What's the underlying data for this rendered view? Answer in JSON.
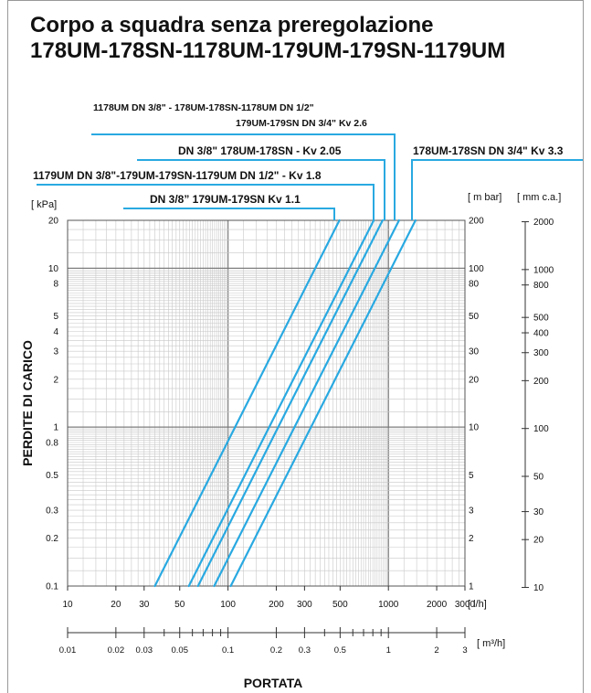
{
  "header": {
    "title_line1": "Corpo a squadra senza preregolazione",
    "title_line2": "178UM-178SN-1178UM-179UM-179SN-1179UM"
  },
  "chart_data": {
    "type": "line",
    "xlabel": "PORTATA",
    "ylabel": "PERDITE DI CARICO",
    "x_scale": "log",
    "y_scale": "log",
    "xlim": [
      10,
      3000
    ],
    "ylim": [
      0.1,
      20
    ],
    "grid": true,
    "line_color": "#29a9e1",
    "x_unit": "[ l/h]",
    "x2_unit": "[ m³/h]",
    "y_unit": "[ kPa]",
    "y2_unit": "[ m bar]",
    "y3_unit": "[ mm c.a.]",
    "x_ticks": [
      {
        "v": 10,
        "t": "10"
      },
      {
        "v": 20,
        "t": "20"
      },
      {
        "v": 30,
        "t": "30"
      },
      {
        "v": 50,
        "t": "50"
      },
      {
        "v": 100,
        "t": "100"
      },
      {
        "v": 200,
        "t": "200"
      },
      {
        "v": 300,
        "t": "300"
      },
      {
        "v": 500,
        "t": "500"
      },
      {
        "v": 1000,
        "t": "1000"
      },
      {
        "v": 2000,
        "t": "2000"
      },
      {
        "v": 3000,
        "t": "3000"
      }
    ],
    "x2_ticks": [
      {
        "v": 0.01,
        "t": "0.01"
      },
      {
        "v": 0.02,
        "t": "0.02"
      },
      {
        "v": 0.03,
        "t": "0.03"
      },
      {
        "v": 0.05,
        "t": "0.05"
      },
      {
        "v": 0.1,
        "t": "0.1"
      },
      {
        "v": 0.2,
        "t": "0.2"
      },
      {
        "v": 0.3,
        "t": "0.3"
      },
      {
        "v": 0.5,
        "t": "0.5"
      },
      {
        "v": 1,
        "t": "1"
      },
      {
        "v": 2,
        "t": "2"
      },
      {
        "v": 3,
        "t": "3"
      }
    ],
    "y_ticks": [
      {
        "v": 0.1,
        "t": "0.1"
      },
      {
        "v": 0.2,
        "t": "0.2"
      },
      {
        "v": 0.3,
        "t": "0.3"
      },
      {
        "v": 0.5,
        "t": "0.5"
      },
      {
        "v": 0.8,
        "t": "0.8"
      },
      {
        "v": 1,
        "t": "1"
      },
      {
        "v": 2,
        "t": "2"
      },
      {
        "v": 3,
        "t": "3"
      },
      {
        "v": 4,
        "t": "4"
      },
      {
        "v": 5,
        "t": "5"
      },
      {
        "v": 8,
        "t": "8"
      },
      {
        "v": 10,
        "t": "10"
      },
      {
        "v": 20,
        "t": "20"
      }
    ],
    "y2_ticks": [
      {
        "v": 0.1,
        "t": "1"
      },
      {
        "v": 0.2,
        "t": "2"
      },
      {
        "v": 0.3,
        "t": "3"
      },
      {
        "v": 0.5,
        "t": "5"
      },
      {
        "v": 1,
        "t": "10"
      },
      {
        "v": 2,
        "t": "20"
      },
      {
        "v": 3,
        "t": "30"
      },
      {
        "v": 5,
        "t": "50"
      },
      {
        "v": 8,
        "t": "80"
      },
      {
        "v": 10,
        "t": "100"
      },
      {
        "v": 20,
        "t": "200"
      }
    ],
    "y3_ticks": [
      {
        "v": 0.098,
        "t": "10"
      },
      {
        "v": 0.196,
        "t": "20"
      },
      {
        "v": 0.294,
        "t": "30"
      },
      {
        "v": 0.49,
        "t": "50"
      },
      {
        "v": 0.98,
        "t": "100"
      },
      {
        "v": 1.96,
        "t": "200"
      },
      {
        "v": 2.94,
        "t": "300"
      },
      {
        "v": 3.92,
        "t": "400"
      },
      {
        "v": 4.9,
        "t": "500"
      },
      {
        "v": 7.84,
        "t": "800"
      },
      {
        "v": 9.8,
        "t": "1000"
      },
      {
        "v": 19.6,
        "t": "2000"
      }
    ],
    "series": [
      {
        "label": "DN 3/8” 179UM-179SN  Kv 1.1",
        "kv": 1.1,
        "x": [
          35,
          495
        ],
        "y": [
          0.1,
          20
        ]
      },
      {
        "label": "1179UM DN 3/8\"-179UM-179SN-1179UM DN 1/2\" - Kv 1.8",
        "kv": 1.8,
        "x": [
          57,
          810
        ],
        "y": [
          0.1,
          20
        ]
      },
      {
        "label": "DN 3/8\" 178UM-178SN - Kv 2.05",
        "kv": 2.05,
        "x": [
          65,
          920
        ],
        "y": [
          0.1,
          20
        ]
      },
      {
        "label": "1178UM DN 3/8\" - 178UM-178SN-1178UM DN 1/2\" 179UM-179SN DN 3/4\"  Kv 2.6",
        "kv": 2.6,
        "x": [
          82,
          1165
        ],
        "y": [
          0.1,
          20
        ]
      },
      {
        "label": "178UM-178SN DN 3/4\" Kv 3.3",
        "kv": 3.3,
        "x": [
          104,
          1475
        ],
        "y": [
          0.1,
          20
        ]
      }
    ],
    "annotations": {
      "kv11": "DN 3/8” 179UM-179SN  Kv 1.1",
      "kv18": "1179UM DN 3/8\"-179UM-179SN-1179UM DN 1/2\" - Kv 1.8",
      "kv205": "DN 3/8\" 178UM-178SN - Kv 2.05",
      "kv26_line1": "1178UM DN 3/8\" - 178UM-178SN-1178UM DN 1/2\"",
      "kv26_line2": "179UM-179SN DN 3/4\"  Kv 2.6",
      "kv33": "178UM-178SN DN 3/4\" Kv 3.3"
    }
  }
}
